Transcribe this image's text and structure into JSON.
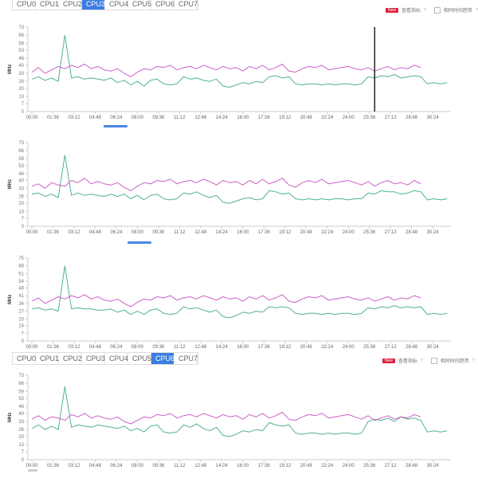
{
  "tabs_top": {
    "items": [
      "CPU0",
      "CPU1",
      "CPU2",
      "CPU3",
      "CPU4",
      "CPU5",
      "CPU6",
      "CPU7"
    ],
    "active": "CPU3"
  },
  "tabs_bottom": {
    "items": [
      "CPU0",
      "CPU1",
      "CPU2",
      "CPU3",
      "CPU4",
      "CPU5",
      "CPU6",
      "CPU7"
    ],
    "active": "CPU6"
  },
  "legend": {
    "badge": "New",
    "metric_label": "查看指标",
    "help": "?",
    "same_time_label": "相同时间趋势"
  },
  "colors": {
    "series_a": "#c64fc0",
    "series_b": "#3ea88a",
    "tab_active": "#3b7de0",
    "badge": "#d9203a"
  },
  "chart_data": [
    {
      "type": "line",
      "ylabel": "MHz",
      "ylim": [
        0,
        73
      ],
      "yticks": [
        0,
        7,
        13,
        20,
        26,
        33,
        40,
        46,
        53,
        59,
        66,
        73
      ],
      "x_unit": "minutes",
      "x_start": 0,
      "x_step": 0.5,
      "xticks": [
        "00:00",
        "01:36",
        "03:12",
        "04:48",
        "06:24",
        "08:00",
        "09:36",
        "11:12",
        "12:48",
        "14:24",
        "16:00",
        "17:36",
        "19:12",
        "20:48",
        "22:24",
        "24:00",
        "25:36",
        "27:12",
        "28:48",
        "30:24"
      ],
      "marker_minute": 26.0,
      "series": [
        {
          "name": "series-a",
          "values": [
            34,
            38,
            33,
            36,
            39,
            37,
            40,
            38,
            41,
            37,
            39,
            36,
            35,
            37,
            33,
            30,
            34,
            37,
            36,
            39,
            38,
            40,
            36,
            38,
            39,
            37,
            40,
            38,
            36,
            39,
            37,
            38,
            35,
            39,
            37,
            40,
            36,
            38,
            41,
            35,
            34,
            37,
            39,
            38,
            40,
            36,
            37,
            38,
            39,
            37,
            36,
            38,
            35,
            37,
            39,
            36,
            38,
            37,
            40,
            38
          ]
        },
        {
          "name": "series-b",
          "values": [
            28,
            30,
            27,
            29,
            26,
            66,
            29,
            30,
            28,
            29,
            28,
            27,
            29,
            25,
            27,
            23,
            26,
            22,
            27,
            28,
            24,
            23,
            24,
            30,
            28,
            29,
            27,
            26,
            28,
            22,
            21,
            23,
            25,
            24,
            26,
            25,
            30,
            31,
            29,
            30,
            24,
            23,
            24,
            24,
            23,
            24,
            23,
            24,
            24,
            23,
            24,
            30,
            29,
            31,
            30,
            32,
            29,
            30,
            31,
            30,
            24,
            25,
            24,
            25
          ]
        }
      ]
    },
    {
      "type": "line",
      "ylabel": "MHz",
      "ylim": [
        0,
        73
      ],
      "yticks": [
        0,
        7,
        13,
        20,
        26,
        33,
        40,
        46,
        53,
        59,
        66,
        73
      ],
      "x_unit": "minutes",
      "x_start": 0,
      "x_step": 0.5,
      "xticks": [
        "00:00",
        "01:36",
        "03:12",
        "04:48",
        "06:24",
        "08:00",
        "09:36",
        "11:12",
        "12:48",
        "14:24",
        "16:00",
        "17:36",
        "19:12",
        "20:48",
        "22:24",
        "24:00",
        "25:36",
        "27:12",
        "28:48",
        "30:24"
      ],
      "series": [
        {
          "name": "series-a",
          "values": [
            35,
            37,
            33,
            38,
            36,
            35,
            40,
            38,
            42,
            37,
            39,
            37,
            36,
            38,
            34,
            31,
            35,
            38,
            37,
            40,
            39,
            41,
            37,
            39,
            40,
            38,
            41,
            39,
            36,
            40,
            38,
            39,
            36,
            40,
            37,
            41,
            37,
            39,
            42,
            36,
            34,
            38,
            40,
            38,
            41,
            37,
            38,
            39,
            40,
            38,
            36,
            39,
            35,
            38,
            40,
            37,
            38,
            36,
            40,
            37
          ]
        },
        {
          "name": "series-b",
          "values": [
            28,
            29,
            26,
            28,
            25,
            62,
            27,
            29,
            27,
            28,
            27,
            26,
            28,
            26,
            28,
            24,
            27,
            23,
            27,
            28,
            24,
            23,
            24,
            29,
            28,
            30,
            27,
            25,
            27,
            21,
            20,
            22,
            24,
            25,
            23,
            24,
            31,
            30,
            28,
            29,
            24,
            23,
            24,
            23,
            24,
            23,
            24,
            24,
            23,
            24,
            24,
            29,
            28,
            31,
            30,
            30,
            28,
            29,
            31,
            30,
            23,
            24,
            23,
            24
          ]
        }
      ]
    },
    {
      "type": "line",
      "ylabel": "MHz",
      "ylim": [
        0,
        75
      ],
      "yticks": [
        0,
        7,
        14,
        20,
        27,
        34,
        41,
        48,
        54,
        61,
        68,
        75
      ],
      "x_unit": "minutes",
      "x_start": 0,
      "x_step": 0.5,
      "xticks": [
        "00:00",
        "01:36",
        "03:12",
        "04:48",
        "06:24",
        "08:00",
        "09:36",
        "11:12",
        "12:48",
        "14:24",
        "16:00",
        "17:36",
        "19:12",
        "20:48",
        "22:24",
        "24:00",
        "25:36",
        "27:12",
        "28:48",
        "30:24"
      ],
      "series": [
        {
          "name": "series-a",
          "values": [
            36,
            39,
            34,
            37,
            40,
            38,
            41,
            39,
            42,
            38,
            40,
            37,
            36,
            38,
            34,
            31,
            35,
            38,
            37,
            40,
            39,
            41,
            37,
            39,
            40,
            38,
            41,
            39,
            37,
            40,
            38,
            39,
            36,
            40,
            38,
            41,
            37,
            39,
            42,
            36,
            35,
            38,
            40,
            39,
            41,
            37,
            38,
            39,
            40,
            38,
            37,
            39,
            36,
            38,
            40,
            37,
            39,
            38,
            41,
            39
          ]
        },
        {
          "name": "series-b",
          "values": [
            29,
            30,
            28,
            29,
            27,
            68,
            29,
            30,
            29,
            29,
            28,
            28,
            29,
            26,
            28,
            24,
            27,
            24,
            28,
            29,
            25,
            24,
            25,
            31,
            29,
            30,
            28,
            26,
            28,
            22,
            21,
            23,
            26,
            25,
            27,
            26,
            31,
            30,
            31,
            30,
            25,
            24,
            25,
            25,
            24,
            25,
            24,
            25,
            25,
            24,
            25,
            30,
            29,
            31,
            30,
            32,
            30,
            31,
            30,
            31,
            24,
            25,
            24,
            25
          ]
        }
      ]
    },
    {
      "type": "line",
      "ylabel": "MHz",
      "ylim": [
        0,
        73
      ],
      "yticks": [
        0,
        7,
        13,
        20,
        26,
        33,
        40,
        46,
        53,
        59,
        66,
        73
      ],
      "x_unit": "minutes",
      "x_start": 0,
      "x_step": 0.5,
      "xticks": [
        "00:00",
        "01:36",
        "03:12",
        "04:48",
        "06:24",
        "08:00",
        "09:36",
        "11:12",
        "12:48",
        "14:24",
        "16:00",
        "17:36",
        "19:12",
        "20:48",
        "22:24",
        "24:00",
        "25:36",
        "27:12",
        "28:48",
        "30:24"
      ],
      "series": [
        {
          "name": "series-a",
          "values": [
            35,
            38,
            34,
            37,
            36,
            34,
            39,
            37,
            40,
            36,
            38,
            36,
            35,
            37,
            33,
            31,
            34,
            37,
            36,
            39,
            38,
            40,
            36,
            38,
            39,
            37,
            40,
            38,
            36,
            39,
            37,
            38,
            35,
            39,
            37,
            40,
            36,
            38,
            41,
            35,
            34,
            37,
            39,
            38,
            40,
            36,
            37,
            38,
            39,
            37,
            35,
            38,
            34,
            36,
            38,
            35,
            37,
            36,
            39,
            37
          ]
        },
        {
          "name": "series-b",
          "values": [
            27,
            30,
            26,
            29,
            26,
            63,
            28,
            30,
            29,
            28,
            30,
            29,
            28,
            27,
            29,
            25,
            27,
            24,
            29,
            30,
            24,
            23,
            24,
            30,
            28,
            31,
            27,
            25,
            28,
            21,
            20,
            22,
            25,
            24,
            26,
            25,
            32,
            30,
            29,
            30,
            23,
            22,
            23,
            23,
            22,
            23,
            22,
            23,
            23,
            22,
            23,
            33,
            35,
            34,
            36,
            33,
            37,
            35,
            36,
            34,
            24,
            25,
            24,
            25
          ]
        }
      ]
    }
  ]
}
